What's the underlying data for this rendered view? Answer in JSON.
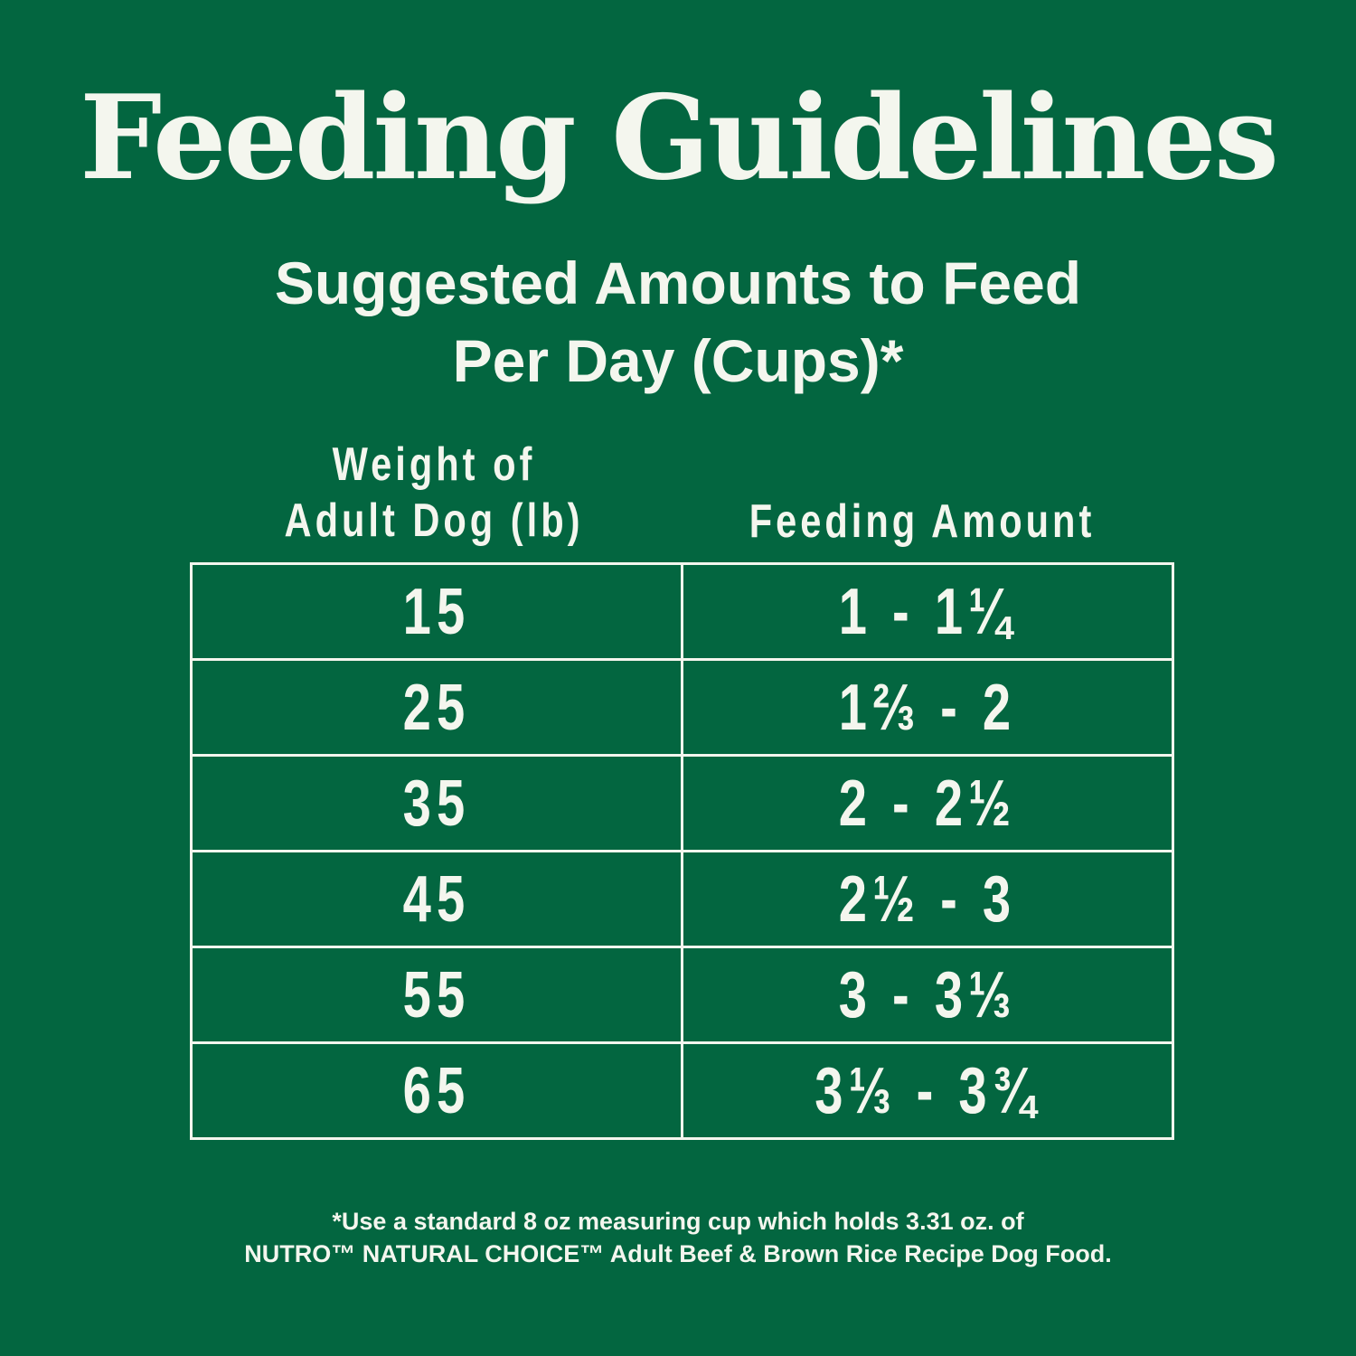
{
  "title": "Feeding Guidelines",
  "subtitle": {
    "line1": "Suggested Amounts to Feed",
    "line2": "Per Day (Cups)*"
  },
  "table": {
    "headers": {
      "weight_line1": "Weight of",
      "weight_line2": "Adult Dog (lb)",
      "amount": "Feeding Amount"
    },
    "rows": [
      {
        "weight": "15",
        "amount": "1 - 1¼"
      },
      {
        "weight": "25",
        "amount": "1⅔ - 2"
      },
      {
        "weight": "35",
        "amount": "2 - 2½"
      },
      {
        "weight": "45",
        "amount": "2½ - 3"
      },
      {
        "weight": "55",
        "amount": "3 - 3⅓"
      },
      {
        "weight": "65",
        "amount": "3⅓ - 3¾"
      }
    ]
  },
  "footnote": {
    "line1": "*Use a standard 8 oz measuring cup which holds 3.31 oz. of",
    "line2": "NUTRO™ NATURAL CHOICE™ Adult Beef & Brown Rice Recipe Dog Food."
  },
  "colors": {
    "background": "#036640",
    "foreground": "#F4F6EE"
  }
}
